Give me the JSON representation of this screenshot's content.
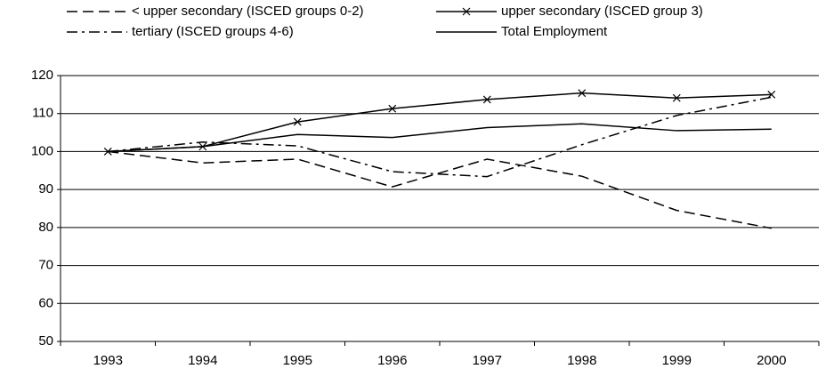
{
  "chart_data": {
    "type": "line",
    "categories": [
      "1993",
      "1994",
      "1995",
      "1996",
      "1997",
      "1998",
      "1999",
      "2000"
    ],
    "series": [
      {
        "name": "< upper secondary (ISCED groups 0-2)",
        "color": "#000000",
        "dash": "dashed",
        "values": [
          100,
          97,
          98,
          90.7,
          98,
          93.5,
          84.5,
          79.8
        ]
      },
      {
        "name": "upper secondary (ISCED group 3)",
        "color": "#000000",
        "marker": "x",
        "values": [
          100,
          101.3,
          107.8,
          111.3,
          113.7,
          115.4,
          114.1,
          115
        ]
      },
      {
        "name": "tertiary (ISCED groups 4-6)",
        "color": "#000000",
        "dash": "dashdot",
        "values": [
          100,
          102.5,
          101.5,
          94.7,
          93.4,
          101.8,
          109.5,
          114.3
        ]
      },
      {
        "name": "Total Employment",
        "color": "#000000",
        "values": [
          100,
          101.3,
          104.5,
          103.7,
          106.3,
          107.3,
          105.5,
          105.9
        ]
      }
    ],
    "ylim": [
      50,
      120
    ],
    "yticks": [
      50,
      60,
      70,
      80,
      90,
      100,
      110,
      120
    ],
    "grid": true
  }
}
